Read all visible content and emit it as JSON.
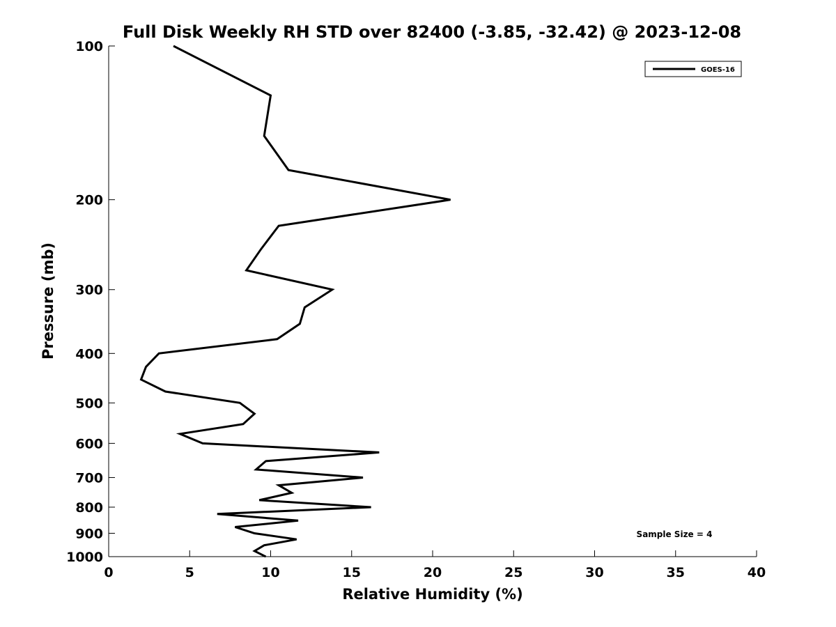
{
  "chart_data": {
    "type": "line",
    "title": "Full Disk Weekly RH STD over 82400 (-3.85, -32.42) @ 2023-12-08",
    "xlabel": "Relative Humidity (%)",
    "ylabel": "Pressure (mb)",
    "xlim": [
      0,
      40
    ],
    "ylim": [
      100,
      1000
    ],
    "y_scale": "log",
    "y_reversed": true,
    "grid": false,
    "legend_position": "top-right",
    "x_ticks": [
      0,
      5,
      10,
      15,
      20,
      25,
      30,
      35,
      40
    ],
    "y_ticks": [
      100,
      200,
      300,
      400,
      500,
      600,
      700,
      800,
      900,
      1000
    ],
    "annotation": "Sample Size = 4",
    "series": [
      {
        "name": "GOES-16",
        "color": "#000000",
        "points": [
          [
            4.0,
            100
          ],
          [
            10.0,
            125
          ],
          [
            9.6,
            150
          ],
          [
            11.1,
            175
          ],
          [
            21.1,
            200
          ],
          [
            10.5,
            225
          ],
          [
            9.4,
            250
          ],
          [
            8.5,
            275
          ],
          [
            13.8,
            300
          ],
          [
            12.1,
            325
          ],
          [
            11.8,
            350
          ],
          [
            10.4,
            375
          ],
          [
            3.1,
            400
          ],
          [
            2.3,
            425
          ],
          [
            2.0,
            450
          ],
          [
            3.5,
            475
          ],
          [
            8.1,
            500
          ],
          [
            9.0,
            525
          ],
          [
            8.3,
            550
          ],
          [
            4.4,
            575
          ],
          [
            5.8,
            600
          ],
          [
            16.7,
            625
          ],
          [
            9.7,
            650
          ],
          [
            9.1,
            675
          ],
          [
            15.7,
            700
          ],
          [
            10.5,
            725
          ],
          [
            11.3,
            750
          ],
          [
            9.3,
            775
          ],
          [
            16.2,
            800
          ],
          [
            6.7,
            825
          ],
          [
            11.7,
            850
          ],
          [
            7.8,
            875
          ],
          [
            9.0,
            900
          ],
          [
            11.6,
            925
          ],
          [
            9.6,
            950
          ],
          [
            9.0,
            975
          ],
          [
            9.7,
            1000
          ]
        ]
      }
    ]
  }
}
